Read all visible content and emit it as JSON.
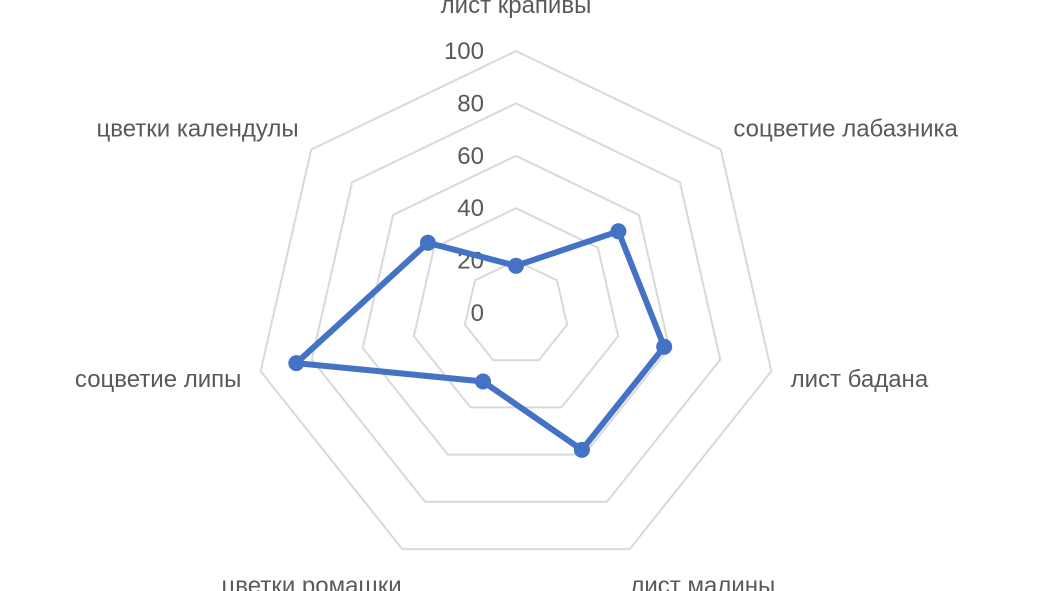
{
  "chart_data": {
    "type": "radar",
    "categories": [
      "лист крапивы",
      "соцветие лабазника",
      "лист бадана",
      "лист малины",
      "цветки ромашки",
      "соцветие липы",
      "цветки календулы"
    ],
    "series": [
      {
        "values": [
          18,
          50,
          58,
          58,
          29,
          86,
          43
        ]
      }
    ],
    "rlim": [
      0,
      100
    ],
    "rticks": [
      "0",
      "20",
      "40",
      "60",
      "80",
      "100"
    ],
    "grid": true,
    "legend": "none",
    "colors": {
      "series": "#4472c4",
      "grid": "#d9d9d9",
      "text": "#595959"
    }
  }
}
